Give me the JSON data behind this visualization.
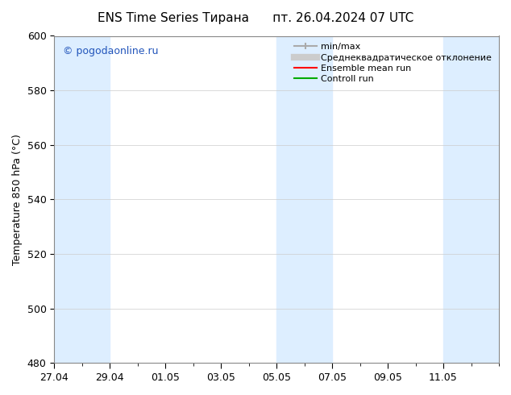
{
  "title": "ENS Time Series Тирана",
  "title2": "пт. 26.04.2024 07 UTC",
  "ylabel": "Temperature 850 hPa (°C)",
  "ylim": [
    480,
    600
  ],
  "yticks": [
    480,
    500,
    520,
    540,
    560,
    580,
    600
  ],
  "background_color": "#ffffff",
  "plot_bg_color": "#ffffff",
  "shaded_color": "#ddeeff",
  "watermark": "© pogodaonline.ru",
  "watermark_color": "#2255bb",
  "legend_items": [
    {
      "label": "min/max",
      "color": "#aaaaaa",
      "lw": 1.5
    },
    {
      "label": "Среднеквадратическое отклонение",
      "color": "#cccccc",
      "lw": 6
    },
    {
      "label": "Ensemble mean run",
      "color": "#ff0000",
      "lw": 1.5
    },
    {
      "label": "Controll run",
      "color": "#00aa00",
      "lw": 1.5
    }
  ],
  "shaded_intervals": [
    [
      0,
      2
    ],
    [
      8,
      10
    ],
    [
      14,
      16
    ]
  ],
  "num_days": 16,
  "xtick_positions": [
    0,
    2,
    4,
    6,
    8,
    10,
    12,
    14
  ],
  "xtick_labels": [
    "27.04",
    "29.04",
    "01.05",
    "03.05",
    "05.05",
    "07.05",
    "09.05",
    "11.05"
  ]
}
